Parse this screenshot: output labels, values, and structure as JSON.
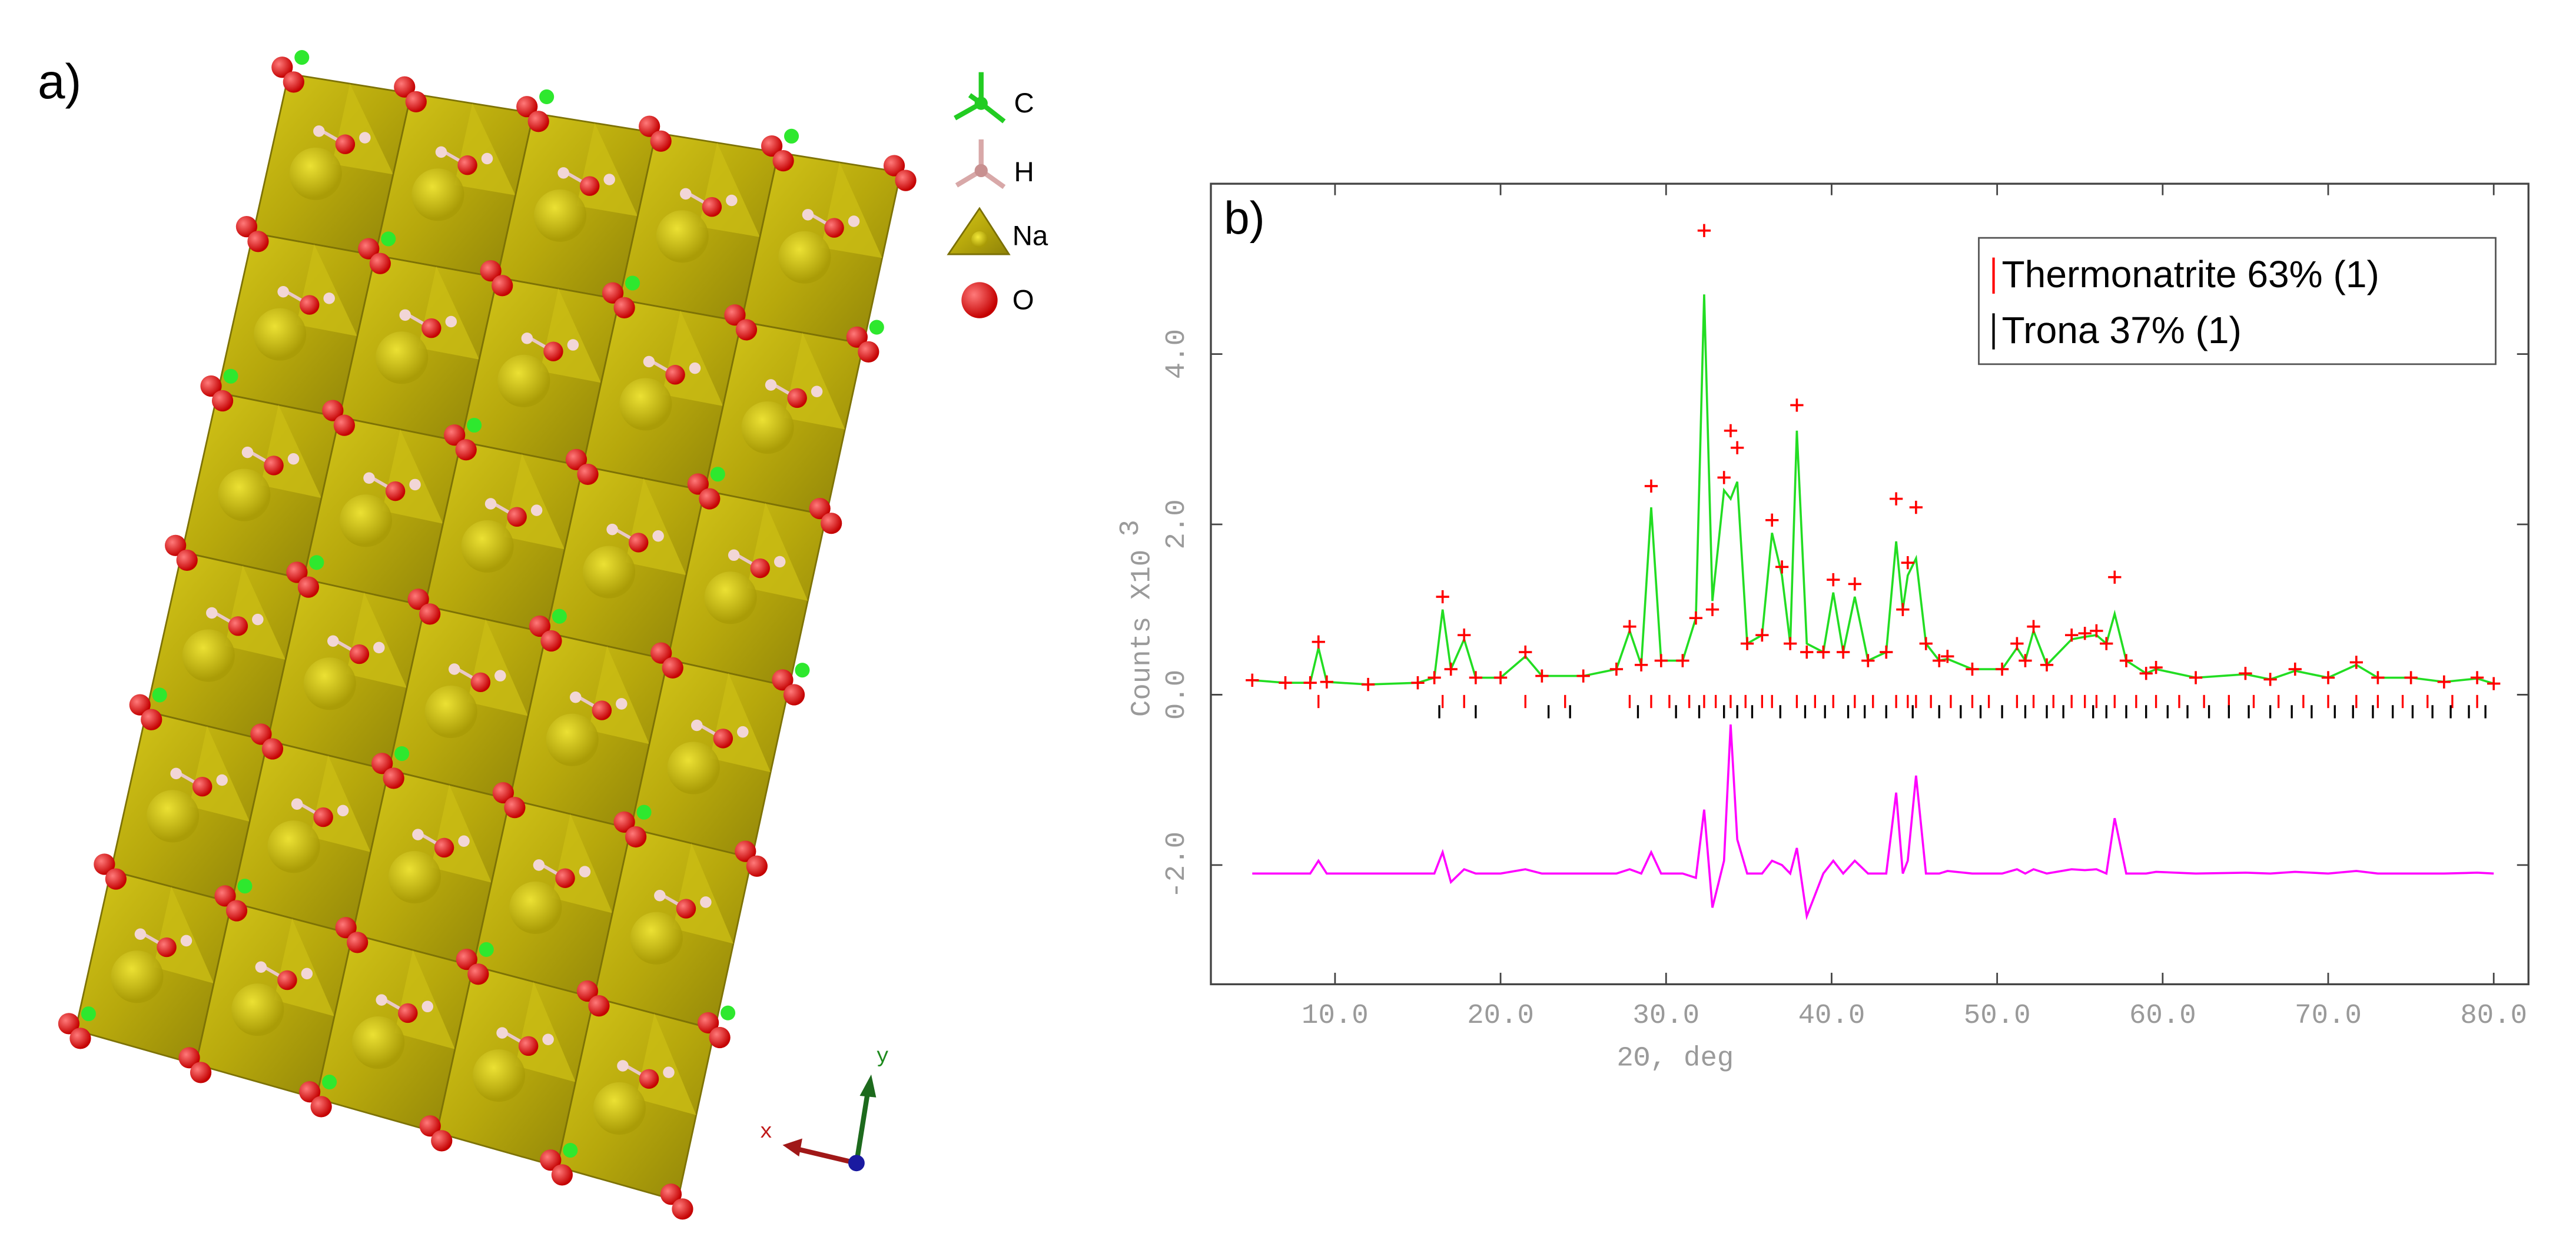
{
  "structure": {
    "panel_label": "a)",
    "legend": [
      {
        "label": "C"
      },
      {
        "label": "H"
      },
      {
        "label": "Na"
      },
      {
        "label": "O"
      }
    ],
    "axes": [
      "x",
      "y"
    ]
  },
  "chart_data": {
    "type": "line",
    "panel_label": "b)",
    "xlabel": "2Θ, deg",
    "ylabel": "Counts  X10",
    "ylabel_exponent": "3",
    "xlim": [
      2.5,
      82.1
    ],
    "ylim": [
      -3.4,
      6.0
    ],
    "xticks": [
      {
        "value": 10,
        "label": "10.0"
      },
      {
        "value": 20,
        "label": "20.0"
      },
      {
        "value": 30,
        "label": "30.0"
      },
      {
        "value": 40,
        "label": "40.0"
      },
      {
        "value": 50,
        "label": "50.0"
      },
      {
        "value": 60,
        "label": "60.0"
      },
      {
        "value": 70,
        "label": "70.0"
      },
      {
        "value": 80,
        "label": "80.0"
      }
    ],
    "yticks": [
      {
        "value": -2,
        "label": "-2.0"
      },
      {
        "value": 0,
        "label": "0.0"
      },
      {
        "value": 2,
        "label": "2.0"
      },
      {
        "value": 4,
        "label": "4.0"
      }
    ],
    "x": [
      5,
      7,
      8.5,
      9.0,
      9.5,
      12,
      15,
      16.0,
      16.5,
      17.0,
      17.8,
      18.5,
      20,
      21.5,
      22.5,
      25,
      27.0,
      27.8,
      28.5,
      29.1,
      29.7,
      31.0,
      31.8,
      32.3,
      32.8,
      33.5,
      33.9,
      34.3,
      34.9,
      35.8,
      36.4,
      37.0,
      37.5,
      37.9,
      38.5,
      39.5,
      40.1,
      40.7,
      41.4,
      42.2,
      43.3,
      43.9,
      44.3,
      44.6,
      45.1,
      45.7,
      46.5,
      47.0,
      48.5,
      50.3,
      51.2,
      51.7,
      52.2,
      53.0,
      54.5,
      55.3,
      56.0,
      56.6,
      57.1,
      57.8,
      59.0,
      59.6,
      62,
      65,
      66.5,
      68,
      70,
      71.7,
      73,
      75,
      77,
      79,
      80
    ],
    "series": [
      {
        "color": "#ff0000",
        "marker": "+",
        "values": [
          0.17,
          0.14,
          0.14,
          0.62,
          0.15,
          0.12,
          0.14,
          0.2,
          1.15,
          0.3,
          0.7,
          0.2,
          0.2,
          0.5,
          0.22,
          0.22,
          0.3,
          0.8,
          0.35,
          2.45,
          0.4,
          0.4,
          0.9,
          5.45,
          1.0,
          2.55,
          3.1,
          2.9,
          0.6,
          0.7,
          2.05,
          1.5,
          0.6,
          3.4,
          0.5,
          0.5,
          1.35,
          0.5,
          1.3,
          0.4,
          0.5,
          2.3,
          1.0,
          1.55,
          2.2,
          0.6,
          0.4,
          0.45,
          0.3,
          0.3,
          0.6,
          0.4,
          0.8,
          0.35,
          0.7,
          0.72,
          0.75,
          0.6,
          1.38,
          0.4,
          0.25,
          0.32,
          0.2,
          0.25,
          0.18,
          0.3,
          0.2,
          0.38,
          0.2,
          0.2,
          0.15,
          0.2,
          0.13
        ]
      },
      {
        "color": "#22dd22",
        "values": [
          0.17,
          0.14,
          0.14,
          0.55,
          0.15,
          0.12,
          0.14,
          0.2,
          1.0,
          0.3,
          0.65,
          0.2,
          0.2,
          0.45,
          0.22,
          0.22,
          0.3,
          0.75,
          0.35,
          2.2,
          0.4,
          0.4,
          0.9,
          4.7,
          1.1,
          2.4,
          2.3,
          2.5,
          0.6,
          0.7,
          1.9,
          1.4,
          0.6,
          3.1,
          0.6,
          0.5,
          1.2,
          0.5,
          1.15,
          0.4,
          0.5,
          1.8,
          1.0,
          1.4,
          1.6,
          0.6,
          0.4,
          0.42,
          0.3,
          0.3,
          0.55,
          0.4,
          0.75,
          0.35,
          0.65,
          0.68,
          0.7,
          0.6,
          0.95,
          0.4,
          0.25,
          0.3,
          0.2,
          0.24,
          0.18,
          0.28,
          0.2,
          0.35,
          0.2,
          0.2,
          0.15,
          0.19,
          0.13
        ]
      },
      {
        "color": "#ff00ff",
        "values": [
          -2.1,
          -2.1,
          -2.1,
          -1.95,
          -2.1,
          -2.1,
          -2.1,
          -2.1,
          -1.85,
          -2.2,
          -2.05,
          -2.1,
          -2.1,
          -2.05,
          -2.1,
          -2.1,
          -2.1,
          -2.05,
          -2.1,
          -1.85,
          -2.1,
          -2.1,
          -2.15,
          -1.35,
          -2.5,
          -1.95,
          -0.35,
          -1.7,
          -2.1,
          -2.1,
          -1.95,
          -2.0,
          -2.1,
          -1.8,
          -2.6,
          -2.1,
          -1.95,
          -2.1,
          -1.95,
          -2.1,
          -2.1,
          -1.15,
          -2.1,
          -1.95,
          -0.95,
          -2.1,
          -2.1,
          -2.07,
          -2.1,
          -2.1,
          -2.05,
          -2.1,
          -2.05,
          -2.1,
          -2.05,
          -2.06,
          -2.05,
          -2.1,
          -1.45,
          -2.1,
          -2.1,
          -2.08,
          -2.1,
          -2.09,
          -2.1,
          -2.08,
          -2.1,
          -2.07,
          -2.1,
          -2.1,
          -2.1,
          -2.09,
          -2.1
        ]
      }
    ],
    "reflections": [
      {
        "name": "Thermonatrite 63% (1)",
        "color": "#ff0000",
        "y": -0.08,
        "positions": [
          9.0,
          16.5,
          17.8,
          21.5,
          23.9,
          27.8,
          29.1,
          30.2,
          31.4,
          32.3,
          33.0,
          33.9,
          34.8,
          35.8,
          36.4,
          37.9,
          39.0,
          40.1,
          41.4,
          42.5,
          43.9,
          44.6,
          45.1,
          46.0,
          47.2,
          48.5,
          49.5,
          51.2,
          52.2,
          53.4,
          54.5,
          55.3,
          56.0,
          57.1,
          58.4,
          59.6,
          61,
          62.5,
          64,
          65.5,
          67,
          68.5,
          70,
          71.7,
          73,
          74.5,
          76,
          77.5,
          79
        ]
      },
      {
        "name": "Trona 37% (1)",
        "color": "#000000",
        "y": -0.2,
        "positions": [
          16.3,
          18.5,
          22.9,
          24.2,
          28.3,
          30.6,
          32.0,
          33.5,
          34.3,
          35.2,
          36.9,
          38.4,
          39.6,
          41.0,
          42.0,
          43.3,
          44.9,
          46.5,
          47.8,
          49.0,
          50.3,
          51.7,
          53.0,
          54.0,
          55.8,
          56.6,
          57.8,
          59.0,
          60.3,
          61.5,
          62.8,
          64.0,
          65.2,
          66.5,
          67.8,
          69.0,
          70.4,
          71.5,
          72.7,
          73.9,
          75.1,
          76.3,
          77.4,
          78.5,
          79.5
        ]
      }
    ]
  }
}
